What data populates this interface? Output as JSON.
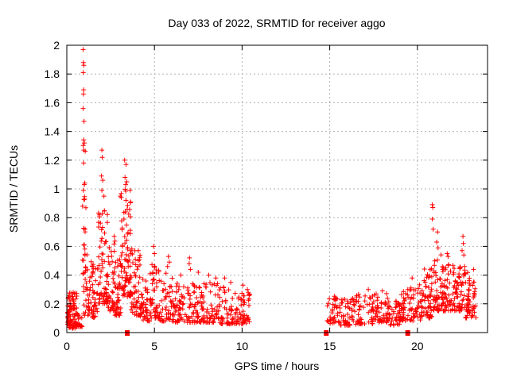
{
  "chart_data": {
    "type": "scatter",
    "title": "Day 033 of 2022, SRMTID for receiver aggo",
    "xlabel": "GPS time / hours",
    "ylabel": "SRMTID / TECUs",
    "xlim": [
      0,
      24
    ],
    "ylim": [
      0,
      2
    ],
    "grid": true,
    "legend": "none",
    "xticks": {
      "values": [
        0,
        5,
        10,
        15,
        20
      ],
      "labels": [
        "0",
        "5",
        "10",
        "15",
        "20"
      ]
    },
    "yticks": {
      "values": [
        0,
        0.2,
        0.4,
        0.6,
        0.8,
        1,
        1.2,
        1.4,
        1.6,
        1.8,
        2
      ],
      "labels": [
        "0",
        "0.2",
        "0.4",
        "0.6",
        "0.8",
        "1",
        "1.2",
        "1.4",
        "1.6",
        "1.8",
        "2"
      ]
    },
    "colors": {
      "marker": "#ff0000",
      "frame": "#000000",
      "grid": "#b0b0b0",
      "background": "#ffffff"
    },
    "marker": {
      "shape": "plus",
      "size": 7
    },
    "zero_markers": {
      "shape": "filled-square",
      "color": "#ff0000",
      "x": [
        3.45,
        14.8,
        19.45
      ]
    },
    "series": [
      {
        "name": "SRMTID",
        "spike_points": [
          [
            0.93,
            1.97
          ],
          [
            0.95,
            1.88
          ],
          [
            0.97,
            1.86
          ],
          [
            0.94,
            1.81
          ],
          [
            0.96,
            1.69
          ],
          [
            0.95,
            1.66
          ],
          [
            0.93,
            1.56
          ],
          [
            0.98,
            1.47
          ],
          [
            1.0,
            1.32
          ],
          [
            0.97,
            1.27
          ],
          [
            0.96,
            1.18
          ],
          [
            1.0,
            1.03
          ],
          [
            0.95,
            0.99
          ],
          [
            1.02,
            0.93
          ],
          [
            0.9,
            0.88
          ],
          [
            1.05,
            0.72
          ],
          [
            1.45,
            0.46
          ],
          [
            1.05,
            0.37
          ],
          [
            2.0,
            1.27
          ],
          [
            2.02,
            1.22
          ],
          [
            1.98,
            1.09
          ],
          [
            2.05,
            1.06
          ],
          [
            2.0,
            0.99
          ],
          [
            2.12,
            0.95
          ],
          [
            3.05,
            0.95
          ],
          [
            3.3,
            1.2
          ],
          [
            3.38,
            1.17
          ],
          [
            3.32,
            1.08
          ],
          [
            3.42,
            1.05
          ],
          [
            3.36,
            1.03
          ],
          [
            4.95,
            0.6
          ],
          [
            5.0,
            0.55
          ],
          [
            5.8,
            0.53
          ],
          [
            5.85,
            0.49
          ],
          [
            5.75,
            0.46
          ],
          [
            7.0,
            0.52
          ],
          [
            6.98,
            0.48
          ],
          [
            7.05,
            0.44
          ],
          [
            6.5,
            0.4
          ],
          [
            7.5,
            0.42
          ],
          [
            8.1,
            0.4
          ],
          [
            8.5,
            0.38
          ],
          [
            9.0,
            0.38
          ],
          [
            9.35,
            0.35
          ],
          [
            10.05,
            0.33
          ],
          [
            10.3,
            0.3
          ],
          [
            17.2,
            0.3
          ],
          [
            18.0,
            0.29
          ],
          [
            19.45,
            0.3
          ],
          [
            19.7,
            0.38
          ],
          [
            20.85,
            0.89
          ],
          [
            20.88,
            0.87
          ],
          [
            20.85,
            0.79
          ],
          [
            20.9,
            0.72
          ],
          [
            21.15,
            0.7
          ],
          [
            21.1,
            0.63
          ],
          [
            21.18,
            0.59
          ],
          [
            21.7,
            0.55
          ],
          [
            21.75,
            0.53
          ],
          [
            22.6,
            0.67
          ],
          [
            22.62,
            0.62
          ],
          [
            22.55,
            0.57
          ],
          [
            22.65,
            0.54
          ],
          [
            23.2,
            0.44
          ]
        ],
        "cluster_fields": [
          "x_start",
          "x_end",
          "n_points",
          "y_min",
          "y_max",
          "y_bias_pow"
        ],
        "clusters": [
          [
            0.02,
            0.6,
            100,
            0.03,
            0.28,
            1.6
          ],
          [
            0.6,
            0.9,
            22,
            0.04,
            0.16,
            1.8
          ],
          [
            0.88,
            1.12,
            22,
            0.28,
            1.35,
            1.1
          ],
          [
            0.95,
            1.35,
            30,
            0.12,
            0.55,
            1.8
          ],
          [
            1.35,
            1.8,
            40,
            0.1,
            0.5,
            1.9
          ],
          [
            1.8,
            2.35,
            70,
            0.2,
            0.85,
            1.7
          ],
          [
            2.35,
            2.75,
            45,
            0.15,
            0.7,
            1.8
          ],
          [
            2.75,
            3.1,
            40,
            0.12,
            0.55,
            1.8
          ],
          [
            3.1,
            3.65,
            85,
            0.25,
            1.0,
            1.6
          ],
          [
            3.65,
            4.2,
            55,
            0.12,
            0.6,
            1.8
          ],
          [
            4.2,
            4.75,
            45,
            0.08,
            0.38,
            1.7
          ],
          [
            4.75,
            5.25,
            45,
            0.1,
            0.5,
            1.7
          ],
          [
            5.25,
            6.1,
            55,
            0.08,
            0.42,
            1.8
          ],
          [
            6.1,
            7.4,
            85,
            0.07,
            0.35,
            1.8
          ],
          [
            7.4,
            8.6,
            75,
            0.07,
            0.35,
            1.8
          ],
          [
            8.6,
            9.7,
            65,
            0.06,
            0.32,
            1.8
          ],
          [
            9.7,
            10.45,
            50,
            0.06,
            0.3,
            1.7
          ],
          [
            14.85,
            15.6,
            42,
            0.06,
            0.26,
            1.6
          ],
          [
            15.6,
            16.5,
            48,
            0.05,
            0.24,
            1.6
          ],
          [
            16.5,
            17.5,
            52,
            0.06,
            0.27,
            1.6
          ],
          [
            17.5,
            18.35,
            50,
            0.07,
            0.29,
            1.5
          ],
          [
            18.35,
            19.0,
            42,
            0.05,
            0.24,
            1.6
          ],
          [
            19.0,
            19.6,
            40,
            0.08,
            0.3,
            1.5
          ],
          [
            19.6,
            20.3,
            45,
            0.08,
            0.34,
            1.5
          ],
          [
            20.3,
            20.9,
            48,
            0.1,
            0.45,
            1.5
          ],
          [
            20.9,
            21.35,
            40,
            0.15,
            0.55,
            1.4
          ],
          [
            21.35,
            22.0,
            55,
            0.15,
            0.5,
            1.5
          ],
          [
            22.0,
            22.75,
            65,
            0.15,
            0.48,
            1.4
          ],
          [
            22.75,
            23.35,
            55,
            0.1,
            0.42,
            1.4
          ]
        ]
      }
    ]
  }
}
